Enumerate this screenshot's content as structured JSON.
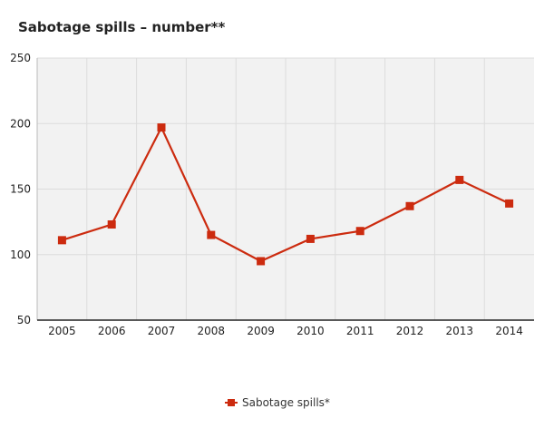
{
  "chart_data": {
    "type": "line",
    "title": "Sabotage spills – number**",
    "xlabel": "",
    "ylabel": "",
    "categories": [
      "2005",
      "2006",
      "2007",
      "2008",
      "2009",
      "2010",
      "2011",
      "2012",
      "2013",
      "2014"
    ],
    "series": [
      {
        "name": "Sabotage spills*",
        "values": [
          111,
          123,
          197,
          115,
          95,
          112,
          118,
          137,
          157,
          139
        ]
      }
    ],
    "ylim": [
      50,
      250
    ],
    "yticks": [
      "50",
      "100",
      "150",
      "200",
      "250"
    ],
    "grid": true,
    "legend": "bottom-center",
    "colors": {
      "series": "#cc2b0f",
      "plot_bg": "#f2f2f2",
      "grid": "#dcdcdc",
      "axis": "#222222"
    }
  }
}
